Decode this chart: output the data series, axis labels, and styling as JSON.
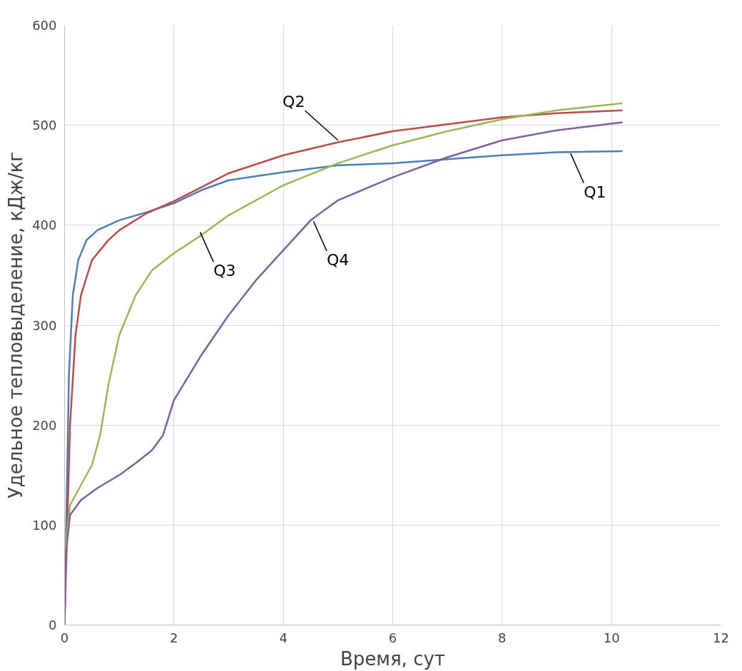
{
  "chart_data": {
    "type": "line",
    "xlabel": "Время, сут",
    "ylabel": "Удельное тепловыделение, кДж/кг",
    "xlim": [
      0,
      12
    ],
    "ylim": [
      0,
      600
    ],
    "xticks": [
      0,
      2,
      4,
      6,
      8,
      10,
      12
    ],
    "yticks": [
      0,
      100,
      200,
      300,
      400,
      500,
      600
    ],
    "grid": true,
    "marker": "none",
    "line_style": "solid",
    "series": [
      {
        "color": "#4a7ebb",
        "x": [
          0,
          0.03,
          0.08,
          0.15,
          0.25,
          0.4,
          0.6,
          1,
          1.5,
          2,
          2.5,
          3,
          4,
          5,
          6,
          7,
          8,
          9,
          10.2
        ],
        "values": [
          0,
          100,
          250,
          330,
          365,
          385,
          395,
          405,
          413,
          422,
          435,
          445,
          453,
          460,
          462,
          466,
          470,
          473,
          474
        ]
      },
      {
        "color": "#be4b48",
        "x": [
          0,
          0.05,
          0.1,
          0.2,
          0.3,
          0.5,
          0.8,
          1,
          1.5,
          2,
          2.5,
          3,
          4,
          5,
          6,
          7,
          8,
          9,
          10.2
        ],
        "values": [
          0,
          100,
          200,
          290,
          330,
          365,
          385,
          395,
          412,
          424,
          438,
          452,
          470,
          483,
          494,
          501,
          508,
          512,
          515
        ]
      },
      {
        "color": "#98b954",
        "x": [
          0,
          0.02,
          0.1,
          0.3,
          0.5,
          0.65,
          0.8,
          1,
          1.3,
          1.6,
          2,
          2.5,
          3,
          4,
          5,
          6,
          7,
          8,
          9,
          10.2
        ],
        "values": [
          0,
          80,
          120,
          140,
          160,
          190,
          240,
          290,
          330,
          355,
          372,
          390,
          410,
          440,
          462,
          480,
          494,
          506,
          515,
          522
        ]
      },
      {
        "color": "#7d60a0",
        "x": [
          0,
          0.02,
          0.1,
          0.3,
          0.6,
          1,
          1.3,
          1.6,
          1.8,
          2,
          2.5,
          3,
          3.5,
          4,
          4.5,
          5,
          6,
          7,
          8,
          9,
          10.2
        ],
        "values": [
          0,
          70,
          110,
          125,
          137,
          150,
          162,
          175,
          190,
          225,
          270,
          310,
          345,
          375,
          405,
          425,
          448,
          468,
          485,
          495,
          503
        ]
      }
    ],
    "annotations": [
      {
        "text": "Q1",
        "x": 9.25,
        "y": 472
      },
      {
        "text": "Q2",
        "x": 5.0,
        "y": 485
      },
      {
        "text": "Q3",
        "x": 2.48,
        "y": 393
      },
      {
        "text": "Q4",
        "x": 4.55,
        "y": 404
      }
    ]
  }
}
